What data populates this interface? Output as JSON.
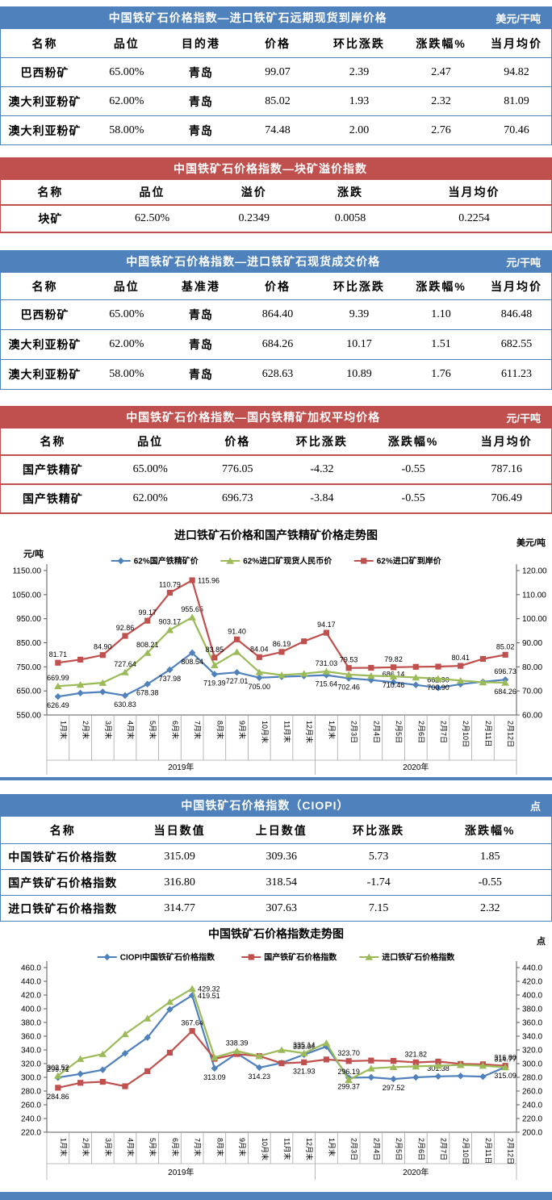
{
  "page": {
    "accent_blue": "#4F81BD",
    "accent_red": "#C0504D",
    "accent_green": "#9BBB59"
  },
  "tables": [
    {
      "title": "中国铁矿石价格指数—进口铁矿石远期现货到岸价格",
      "unit": "美元/干吨",
      "theme": "blue",
      "columns": [
        "名称",
        "品位",
        "目的港",
        "价格",
        "环比涨跌",
        "涨跌幅%",
        "当月均价"
      ],
      "rows": [
        [
          "巴西粉矿",
          "65.00%",
          "青岛",
          "99.07",
          "2.39",
          "2.47",
          "94.82"
        ],
        [
          "澳大利亚粉矿",
          "62.00%",
          "青岛",
          "85.02",
          "1.93",
          "2.32",
          "81.09"
        ],
        [
          "澳大利亚粉矿",
          "58.00%",
          "青岛",
          "74.48",
          "2.00",
          "2.76",
          "70.46"
        ]
      ]
    },
    {
      "title": "中国铁矿石价格指数—块矿溢价指数",
      "unit": "",
      "theme": "red",
      "columns": [
        "名称",
        "品位",
        "溢价",
        "涨跌",
        "当月均价"
      ],
      "rows": [
        [
          "块矿",
          "62.50%",
          "0.2349",
          "0.0058",
          "0.2254"
        ]
      ]
    },
    {
      "title": "中国铁矿石价格指数—进口铁矿石现货成交价格",
      "unit": "元/干吨",
      "theme": "blue",
      "columns": [
        "名称",
        "品位",
        "基准港",
        "价格",
        "环比涨跌",
        "涨跌幅%",
        "当月均价"
      ],
      "rows": [
        [
          "巴西粉矿",
          "65.00%",
          "青岛",
          "864.40",
          "9.39",
          "1.10",
          "846.48"
        ],
        [
          "澳大利亚粉矿",
          "62.00%",
          "青岛",
          "684.26",
          "10.17",
          "1.51",
          "682.55"
        ],
        [
          "澳大利亚粉矿",
          "58.00%",
          "青岛",
          "628.63",
          "10.89",
          "1.76",
          "611.23"
        ]
      ]
    },
    {
      "title": "中国铁矿石价格指数—国内铁精矿加权平均价格",
      "unit": "元/干吨",
      "theme": "red",
      "columns": [
        "名称",
        "品位",
        "价格",
        "环比涨跌",
        "涨跌幅%",
        "当月均价"
      ],
      "rows": [
        [
          "国产铁精矿",
          "65.00%",
          "776.05",
          "-4.32",
          "-0.55",
          "787.16"
        ],
        [
          "国产铁精矿",
          "62.00%",
          "696.73",
          "-3.84",
          "-0.55",
          "706.49"
        ]
      ]
    },
    {
      "title": "中国铁矿石价格指数（CIOPI）",
      "unit": "点",
      "theme": "blue",
      "columns": [
        "名称",
        "当日数值",
        "上日数值",
        "环比涨跌",
        "涨跌幅%"
      ],
      "rows": [
        [
          "中国铁矿石价格指数",
          "315.09",
          "309.36",
          "5.73",
          "1.85"
        ],
        [
          "国产铁矿石价格指数",
          "316.80",
          "318.54",
          "-1.74",
          "-0.55"
        ],
        [
          "进口铁矿石价格指数",
          "314.77",
          "307.63",
          "7.15",
          "2.32"
        ]
      ]
    }
  ],
  "chart_data": [
    {
      "type": "line",
      "title": "进口铁矿石价格和国产铁精矿价格走势图",
      "left_axis": {
        "unit": "元/吨",
        "min": 550,
        "max": 1150,
        "step": 100,
        "decimals": 2
      },
      "right_axis": {
        "unit": "美元/吨",
        "min": 60,
        "max": 120,
        "step": 10,
        "decimals": 2
      },
      "categories": [
        "1月末",
        "2月末",
        "3月末",
        "4月末",
        "5月末",
        "6月末",
        "7月末",
        "8月末",
        "9月末",
        "10月末",
        "11月末",
        "12月末",
        "1月末",
        "2月3日",
        "2月4日",
        "2月5日",
        "2月6日",
        "2月7日",
        "2月10日",
        "2月11日",
        "2月12日"
      ],
      "groups": [
        {
          "label": "2019年",
          "span": 12
        },
        {
          "label": "2020年",
          "span": 9
        }
      ],
      "legend_position": "top",
      "grid": false,
      "series": [
        {
          "name": "62%国产铁精矿价",
          "color": "#4F81BD",
          "marker": "diamond",
          "axis": "left",
          "label_side": "b",
          "label_overrides": {
            "15": "a",
            "17": "a",
            "20": "a"
          },
          "values": [
            626.49,
            641,
            646,
            630.83,
            678.38,
            737.98,
            808.54,
            719.39,
            727.01,
            705.0,
            709,
            712,
            715.64,
            702.46,
            695,
            686.14,
            675,
            662.9,
            678,
            688,
            696.73
          ],
          "labels": [
            "626.49",
            null,
            null,
            "630.83",
            "678.38",
            "737.98",
            "808.54",
            "719.39",
            "727.01",
            "705.00",
            null,
            null,
            "715.64",
            "702.46",
            null,
            "686.14",
            null,
            "662.90",
            null,
            null,
            "696.73"
          ]
        },
        {
          "name": "62%进口矿现货人民币价",
          "color": "#9BBB59",
          "marker": "triangle",
          "axis": "left",
          "label_side": "a",
          "label_overrides": {
            "15": "b",
            "17": "b",
            "20": "b"
          },
          "values": [
            669.99,
            676,
            684,
            727.64,
            808.21,
            903.17,
            955.65,
            757,
            812,
            728,
            716,
            722,
            731.03,
            718,
            713,
            710.46,
            706,
            700.9,
            693,
            686,
            684.26
          ],
          "labels": [
            "669.99",
            null,
            null,
            "727.64",
            "808.21",
            "903.17",
            "955.65",
            null,
            null,
            null,
            null,
            null,
            "731.03",
            null,
            null,
            "710.46",
            null,
            "700.90",
            null,
            null,
            "684.26"
          ]
        },
        {
          "name": "62%进口矿到岸价",
          "color": "#C0504D",
          "marker": "square",
          "axis": "right",
          "label_side": "a",
          "label_overrides": {
            "6": "r"
          },
          "values": [
            81.71,
            83.0,
            84.9,
            92.86,
            99.17,
            110.79,
            115.96,
            83.85,
            91.4,
            84.04,
            86.19,
            90.6,
            94.17,
            79.53,
            79.6,
            79.82,
            80.0,
            80.1,
            80.41,
            83.3,
            85.02
          ],
          "labels": [
            "81.71",
            null,
            "84.90",
            "92.86",
            "99.17",
            "110.79",
            "115.96",
            "83.85",
            "91.40",
            "84.04",
            "86.19",
            null,
            "94.17",
            "79.53",
            null,
            "79.82",
            null,
            null,
            "80.41",
            null,
            "85.02"
          ]
        }
      ]
    },
    {
      "type": "line",
      "title": "中国铁矿石价格指数走势图",
      "left_axis": {
        "unit": "",
        "min": 220,
        "max": 460,
        "step": 20,
        "decimals": 1
      },
      "right_axis": {
        "unit": "点",
        "min": 200,
        "max": 440,
        "step": 20,
        "decimals": 1
      },
      "categories": [
        "1月末",
        "2月末",
        "3月末",
        "4月末",
        "5月末",
        "6月末",
        "7月末",
        "8月末",
        "9月末",
        "10月末",
        "11月末",
        "12月末",
        "1月末",
        "2月3日",
        "2月4日",
        "2月5日",
        "2月6日",
        "2月7日",
        "2月10日",
        "2月11日",
        "2月12日"
      ],
      "groups": [
        {
          "label": "2019年",
          "span": 12
        },
        {
          "label": "2020年",
          "span": 9
        }
      ],
      "legend_position": "top",
      "grid": false,
      "series": [
        {
          "name": "CIOPI中国铁矿石价格指数",
          "color": "#4F81BD",
          "marker": "diamond",
          "axis": "left",
          "label_side": "b",
          "label_overrides": {
            "0": "a",
            "6": "r",
            "11": "a",
            "17": "a"
          },
          "values": [
            299.71,
            305,
            311,
            335,
            358,
            399,
            419.51,
            313.09,
            335,
            314.23,
            321,
            333.04,
            345,
            299.37,
            300,
            297.52,
            300,
            301.38,
            302,
            301,
            315.09
          ],
          "labels": [
            "299.71",
            null,
            null,
            null,
            null,
            null,
            "419.51",
            "313.09",
            null,
            "314.23",
            null,
            "333.04",
            null,
            "299.37",
            null,
            "297.52",
            null,
            "301.38",
            null,
            null,
            "315.09"
          ]
        },
        {
          "name": "国产铁矿石价格指数",
          "color": "#C0504D",
          "marker": "square",
          "axis": "left",
          "label_side": "a",
          "label_overrides": {
            "0": "b",
            "11": "b"
          },
          "values": [
            284.86,
            292,
            293.5,
            287,
            309,
            336,
            367.64,
            327,
            334,
            331,
            320.5,
            321.93,
            326,
            323.7,
            324.5,
            324,
            321.82,
            323,
            319.5,
            319,
            316.8
          ],
          "labels": [
            "284.86",
            null,
            null,
            null,
            null,
            null,
            "367.64",
            null,
            null,
            null,
            null,
            "321.93",
            null,
            "323.70",
            null,
            null,
            "321.82",
            null,
            null,
            null,
            "316.80"
          ]
        },
        {
          "name": "进口铁矿石价格指数",
          "color": "#9BBB59",
          "marker": "triangle",
          "axis": "left",
          "label_side": "a",
          "label_overrides": {
            "6": "r"
          },
          "values": [
            302.52,
            327,
            334,
            363,
            386,
            410,
            429.32,
            329,
            338.39,
            331,
            340,
            335.14,
            350,
            296.19,
            313,
            315,
            316,
            317,
            318,
            317,
            314.77
          ],
          "labels": [
            "302.52",
            null,
            null,
            null,
            null,
            null,
            "429.32",
            null,
            "338.39",
            null,
            null,
            "335.14",
            null,
            "296.19",
            null,
            null,
            null,
            null,
            null,
            null,
            "314.77"
          ]
        }
      ]
    }
  ]
}
